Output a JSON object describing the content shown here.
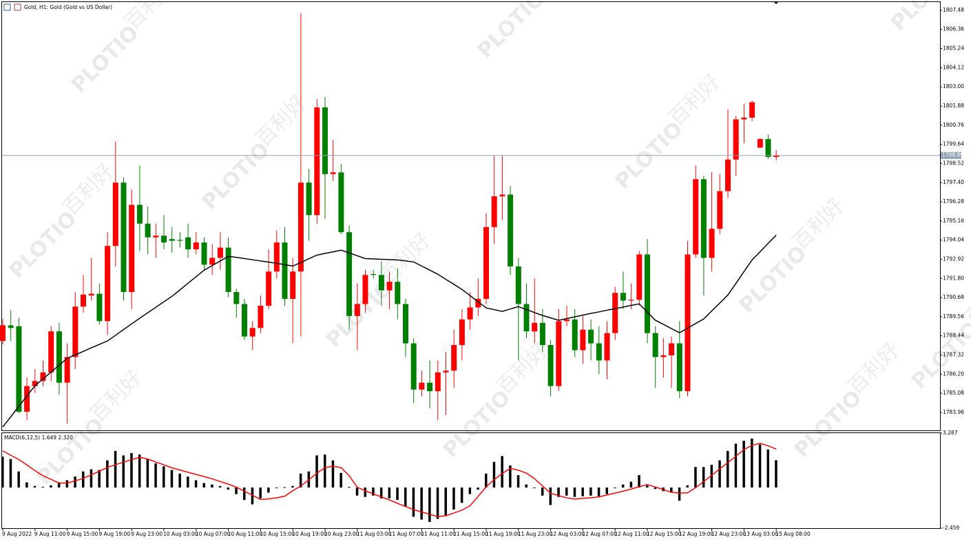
{
  "title": "Gold, H1:  Gold (Gold vs US Dollar)",
  "watermark": {
    "brand": "PLOTIO",
    "cn": "百利好"
  },
  "chart_data": [
    {
      "type": "candlestick",
      "up_color": "#ff0000",
      "down_color": "#008000",
      "categories": [
        "9 Aug 2022",
        null,
        null,
        null,
        "9 Aug 11:00",
        null,
        null,
        null,
        "9 Aug 15:00",
        null,
        null,
        null,
        "9 Aug 19:00",
        null,
        null,
        null,
        "9 Aug 23:00",
        null,
        null,
        null,
        "10 Aug 03:00",
        null,
        null,
        null,
        "10 Aug 07:00",
        null,
        null,
        null,
        "10 Aug 11:00",
        null,
        null,
        null,
        "10 Aug 15:00",
        null,
        null,
        null,
        "10 Aug 19:00",
        null,
        null,
        null,
        "10 Aug 23:00",
        null,
        null,
        null,
        "11 Aug 03:00",
        null,
        null,
        null,
        "11 Aug 07:00",
        null,
        null,
        null,
        "11 Aug 11:00",
        null,
        null,
        null,
        "11 Aug 15:00",
        null,
        null,
        null,
        "11 Aug 19:00",
        null,
        null,
        null,
        "11 Aug 23:00",
        null,
        null,
        null,
        "12 Aug 03:00",
        null,
        null,
        null,
        "12 Aug 07:00",
        null,
        null,
        null,
        "12 Aug 11:00",
        null,
        null,
        null,
        "12 Aug 15:00",
        null,
        null,
        null,
        "12 Aug 19:00",
        null,
        null,
        null,
        "12 Aug 23:00",
        null,
        null,
        null,
        "13 Aug 03:00",
        null,
        null,
        null,
        "15 Aug 08:00"
      ],
      "open": [
        1788.14,
        1789.05,
        1789.0,
        1784.0,
        1785.5,
        1785.8,
        1786.3,
        1788.7,
        1785.7,
        1787.2,
        1790.15,
        1790.8,
        1790.9,
        1789.3,
        1793.7,
        1797.4,
        1791.0,
        1796.1,
        1795.0,
        1794.2,
        1794.3,
        1794.1,
        1794.05,
        1794.2,
        1793.5,
        1793.9,
        1792.6,
        1793.0,
        1793.6,
        1791.0,
        1790.3,
        1788.4,
        1788.9,
        1790.2,
        1792.2,
        1793.9,
        1790.6,
        1792.2,
        1797.4,
        1795.5,
        1801.8,
        1797.9,
        1798.0,
        1794.5,
        1789.6,
        1790.3,
        1792.05,
        1792.0,
        1791.1,
        1791.6,
        1790.3,
        1788.0,
        1785.3,
        1785.7,
        1785.2,
        1786.3,
        1786.4,
        1787.9,
        1789.4,
        1790.1,
        1790.6,
        1794.8,
        1796.6,
        1796.7,
        1792.5,
        1790.3,
        1788.7,
        1789.2,
        1787.9,
        1785.5,
        1789.3,
        1789.4,
        1787.6,
        1788.8,
        1788.0,
        1787.0,
        1788.6,
        1790.95,
        1790.5,
        1790.55,
        1793.2,
        1788.6,
        1787.2,
        1787.3,
        1788.0,
        1785.2,
        1793.2,
        1797.6,
        1793.0,
        1794.7,
        1796.9,
        1798.75,
        1801.1,
        1801.2,
        1799.45,
        1799.95,
        1798.9
      ],
      "high": [
        1789.43,
        1789.95,
        1789.5,
        1786.0,
        1786.5,
        1787.0,
        1789.0,
        1789.2,
        1788.0,
        1791.0,
        1792.0,
        1793.0,
        1791.5,
        1794.5,
        1799.8,
        1797.7,
        1797.0,
        1798.4,
        1796.0,
        1795.0,
        1795.5,
        1794.8,
        1794.5,
        1795.0,
        1794.5,
        1794.2,
        1793.8,
        1794.5,
        1794.2,
        1791.2,
        1790.6,
        1789.3,
        1790.8,
        1793.5,
        1794.6,
        1794.8,
        1793.0,
        1807.3,
        1798.2,
        1802.3,
        1802.4,
        1799.9,
        1798.5,
        1794.9,
        1791.5,
        1792.3,
        1792.3,
        1792.8,
        1792.2,
        1792.4,
        1790.6,
        1788.3,
        1786.4,
        1787.0,
        1787.0,
        1787.5,
        1788.8,
        1790.0,
        1791.0,
        1791.8,
        1795.6,
        1799.0,
        1799.0,
        1797.2,
        1793.0,
        1791.5,
        1791.8,
        1790.0,
        1788.2,
        1790.0,
        1790.2,
        1790.0,
        1789.6,
        1789.4,
        1789.0,
        1789.3,
        1791.3,
        1792.2,
        1791.5,
        1793.4,
        1794.1,
        1789.0,
        1788.3,
        1788.4,
        1789.3,
        1794.0,
        1798.4,
        1797.8,
        1798.0,
        1797.9,
        1801.7,
        1801.3,
        1802.0,
        1802.2,
        1800.0,
        1800.2,
        1799.3
      ],
      "low": [
        1787.94,
        1788.14,
        1783.9,
        1783.5,
        1785.1,
        1785.5,
        1785.8,
        1785.0,
        1783.3,
        1786.5,
        1789.8,
        1790.5,
        1789.1,
        1788.5,
        1792.5,
        1790.5,
        1790.0,
        1793.4,
        1793.2,
        1793.0,
        1793.5,
        1793.3,
        1793.6,
        1793.0,
        1793.2,
        1792.3,
        1792.0,
        1792.3,
        1790.7,
        1789.5,
        1788.2,
        1787.6,
        1788.6,
        1790.0,
        1791.8,
        1790.2,
        1788.0,
        1788.4,
        1794.0,
        1795.0,
        1795.3,
        1797.5,
        1794.4,
        1788.8,
        1787.6,
        1789.8,
        1791.8,
        1790.2,
        1790.0,
        1789.4,
        1787.2,
        1784.5,
        1784.9,
        1784.2,
        1783.5,
        1783.8,
        1785.4,
        1787.0,
        1788.8,
        1789.6,
        1790.3,
        1793.8,
        1795.2,
        1792.0,
        1787.0,
        1788.3,
        1788.0,
        1787.5,
        1784.9,
        1785.2,
        1789.0,
        1787.2,
        1786.8,
        1787.0,
        1786.2,
        1785.9,
        1788.2,
        1790.0,
        1790.0,
        1790.2,
        1788.0,
        1785.4,
        1786.0,
        1785.4,
        1784.8,
        1784.9,
        1793.0,
        1790.8,
        1792.2,
        1794.4,
        1796.5,
        1797.8,
        1799.7,
        1801.0,
        1799.4,
        1798.8,
        1798.7
      ],
      "close": [
        1789.06,
        1788.9,
        1784.0,
        1785.5,
        1785.8,
        1786.3,
        1788.7,
        1785.7,
        1787.2,
        1790.15,
        1790.85,
        1790.9,
        1789.3,
        1793.7,
        1797.4,
        1791.0,
        1796.1,
        1795.0,
        1794.2,
        1794.3,
        1793.9,
        1794.0,
        1794.0,
        1793.5,
        1793.9,
        1792.6,
        1793.0,
        1793.6,
        1791.0,
        1790.3,
        1788.4,
        1788.9,
        1790.2,
        1792.2,
        1793.9,
        1790.6,
        1792.2,
        1797.4,
        1795.5,
        1801.8,
        1797.9,
        1798.0,
        1794.5,
        1789.6,
        1790.3,
        1792.0,
        1792.0,
        1791.1,
        1791.6,
        1790.3,
        1788.0,
        1785.3,
        1785.7,
        1785.2,
        1786.3,
        1786.4,
        1787.9,
        1789.4,
        1790.1,
        1790.6,
        1794.8,
        1796.6,
        1796.7,
        1792.5,
        1790.3,
        1788.7,
        1789.2,
        1787.9,
        1785.5,
        1789.3,
        1789.4,
        1787.6,
        1788.8,
        1788.0,
        1787.0,
        1788.6,
        1790.95,
        1790.5,
        1790.55,
        1793.2,
        1788.6,
        1787.2,
        1787.3,
        1788.0,
        1785.2,
        1793.2,
        1797.6,
        1793.0,
        1794.7,
        1796.9,
        1798.75,
        1801.1,
        1801.2,
        1802.1,
        1799.95,
        1798.9,
        1798.99
      ],
      "moving_average": {
        "color": "#000000",
        "values": [
          1783.11,
          1783.71,
          1784.32,
          1784.92,
          1785.52,
          1785.92,
          1786.32,
          1786.73,
          1787.13,
          1787.33,
          1787.53,
          1787.74,
          1787.94,
          1788.14,
          1788.47,
          1788.81,
          1789.14,
          1789.47,
          1789.79,
          1790.11,
          1790.43,
          1790.75,
          1791.13,
          1791.52,
          1791.9,
          1792.28,
          1792.55,
          1792.82,
          1793.09,
          1793.03,
          1792.96,
          1792.89,
          1792.82,
          1792.75,
          1792.68,
          1792.6,
          1792.52,
          1792.73,
          1792.95,
          1793.16,
          1793.26,
          1793.35,
          1793.45,
          1793.29,
          1793.12,
          1792.96,
          1792.94,
          1792.92,
          1792.9,
          1792.88,
          1792.82,
          1792.76,
          1792.52,
          1792.28,
          1792.04,
          1791.74,
          1791.45,
          1791.15,
          1790.79,
          1790.43,
          1790.07,
          1789.97,
          1789.87,
          1790.01,
          1790.15,
          1789.98,
          1789.8,
          1789.63,
          1789.49,
          1789.35,
          1789.45,
          1789.55,
          1789.65,
          1789.75,
          1789.84,
          1789.94,
          1790.03,
          1790.12,
          1790.22,
          1790.31,
          1789.83,
          1789.35,
          1789.11,
          1788.86,
          1788.62,
          1788.89,
          1789.16,
          1789.43,
          1789.9,
          1790.36,
          1790.83,
          1791.51,
          1792.2,
          1792.88,
          1793.36,
          1793.85,
          1794.33
        ]
      },
      "last_price": 1798.99,
      "ylim": [
        1782.91,
        1807.96
      ],
      "yticks": [
        1807.48,
        1806.36,
        1805.24,
        1804.12,
        {
          "value": 1803,
          "label": "1803.00"
        },
        1801.88,
        1800.76,
        1799.64,
        1798.52,
        {
          "value": 1797.4,
          "label": "1797.40"
        },
        1796.28,
        1795.16,
        1794.04,
        1792.92,
        {
          "value": 1791.8,
          "label": "1791.80"
        },
        1790.68,
        1789.56,
        1788.44,
        1787.32,
        {
          "value": 1786.2,
          "label": "1786.20"
        },
        1785.08,
        1783.96
      ]
    },
    {
      "type": "macd",
      "label": "MACD(6,12,5) 1.649 2.320",
      "histogram": {
        "color": "#000000",
        "values": [
          1.86,
          1.72,
          0.97,
          0.31,
          0.09,
          0.04,
          0.13,
          0.31,
          0.44,
          0.66,
          0.97,
          1.1,
          1.06,
          1.64,
          2.21,
          1.94,
          2.08,
          1.99,
          1.72,
          1.46,
          1.28,
          1.06,
          0.84,
          0.66,
          0.44,
          0.27,
          0.18,
          0.09,
          -0.13,
          -0.4,
          -0.75,
          -1.02,
          -0.66,
          -0.31,
          -0.04,
          0.02,
          0.09,
          0.84,
          0.97,
          1.94,
          1.99,
          1.64,
          0.88,
          0.04,
          -0.49,
          -0.57,
          -0.49,
          -0.66,
          -0.66,
          -0.75,
          -1.15,
          -1.77,
          -1.94,
          -2.08,
          -1.9,
          -1.68,
          -1.33,
          -0.93,
          -0.4,
          -0.13,
          0.84,
          1.55,
          1.9,
          1.33,
          0.75,
          0.18,
          -0.04,
          -0.49,
          -1.06,
          -0.57,
          -0.49,
          -0.57,
          -0.53,
          -0.49,
          -0.53,
          -0.4,
          -0.04,
          0.18,
          0.35,
          0.75,
          0.13,
          -0.09,
          -0.22,
          -0.31,
          -0.8,
          0.13,
          1.24,
          1.24,
          1.37,
          1.64,
          2.21,
          2.65,
          2.83,
          2.96,
          2.61,
          2.3,
          1.649
        ]
      },
      "signal": {
        "color": "#ff0000",
        "values": [
          2.21,
          1.95,
          1.69,
          1.36,
          1.02,
          0.71,
          0.49,
          0.27,
          0.27,
          0.4,
          0.55,
          0.77,
          0.99,
          1.22,
          1.38,
          1.53,
          1.68,
          1.83,
          1.72,
          1.54,
          1.37,
          1.19,
          1.06,
          0.92,
          0.79,
          0.66,
          0.52,
          0.36,
          0.2,
          0.02,
          -0.23,
          -0.47,
          -0.72,
          -0.69,
          -0.62,
          -0.53,
          -0.19,
          0.09,
          0.47,
          0.87,
          1.2,
          1.29,
          1.2,
          0.71,
          0.01,
          -0.2,
          -0.39,
          -0.57,
          -0.76,
          -0.96,
          -1.15,
          -1.34,
          -1.48,
          -1.62,
          -1.76,
          -1.71,
          -1.54,
          -1.37,
          -1.1,
          -0.54,
          0.04,
          0.48,
          0.85,
          1.16,
          1.04,
          0.87,
          0.53,
          0.09,
          -0.35,
          -0.49,
          -0.63,
          -0.7,
          -0.66,
          -0.62,
          -0.57,
          -0.45,
          -0.34,
          -0.22,
          -0.09,
          0.05,
          0.18,
          0.03,
          -0.13,
          -0.29,
          -0.34,
          -0.32,
          -0.01,
          0.36,
          0.74,
          1.13,
          1.51,
          1.89,
          2.3,
          2.55,
          2.67,
          2.52,
          2.32
        ]
      },
      "ylim": [
        -2.459,
        3.287
      ],
      "yticks": [
        3.287,
        -2.459
      ]
    }
  ]
}
